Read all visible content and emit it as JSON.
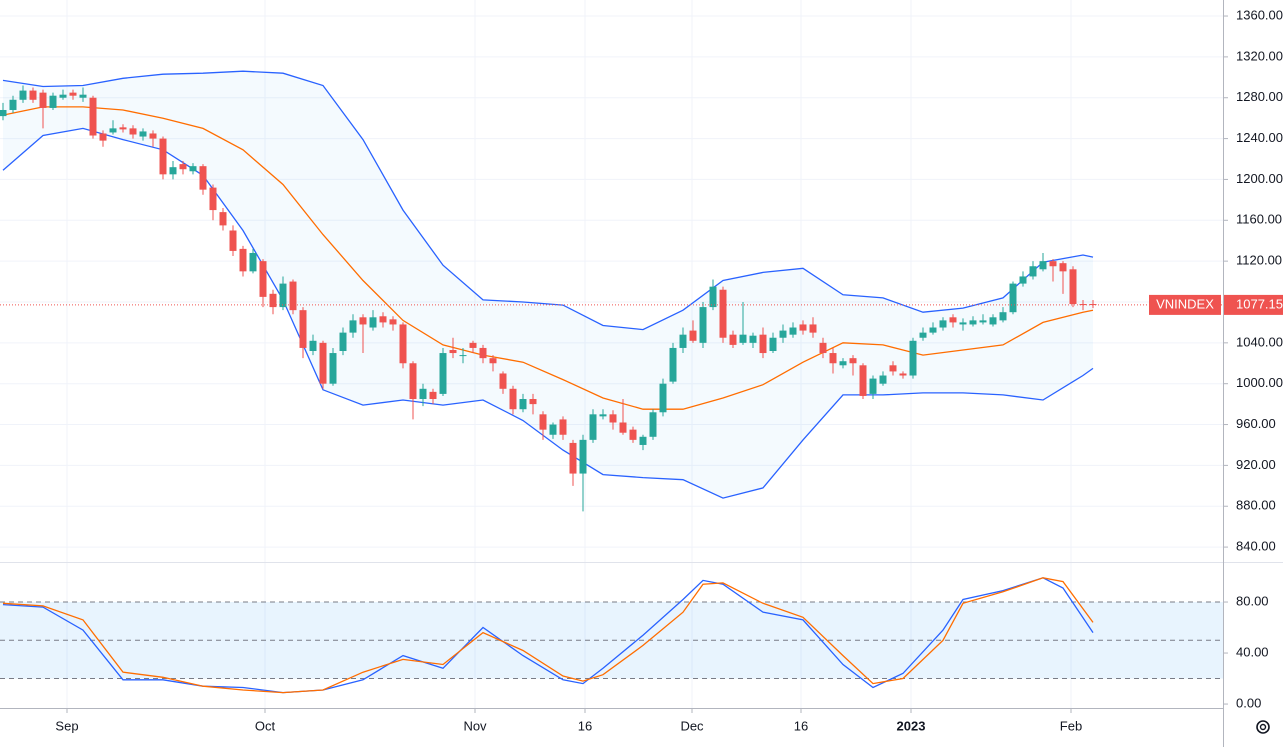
{
  "chart_data": {
    "type": "candlestick",
    "symbol": "VNINDEX",
    "last_price": {
      "value": 1077.15,
      "label": "1077.15"
    },
    "up_color": "#26a69a",
    "down_color": "#ef5350",
    "xlim": [
      -0.3,
      122.0
    ],
    "xticks": [
      {
        "value": 6.4,
        "label": "Sep"
      },
      {
        "value": 26.2,
        "label": "Oct"
      },
      {
        "value": 47.2,
        "label": "Nov"
      },
      {
        "value": 58.2,
        "label": "16"
      },
      {
        "value": 68.9,
        "label": "Dec"
      },
      {
        "value": 79.8,
        "label": "16"
      },
      {
        "value": 90.8,
        "label": "2023"
      },
      {
        "value": 106.8,
        "label": "Feb"
      }
    ],
    "ylim": [
      825.4,
      1375.7
    ],
    "yticks": [
      {
        "value": 1360,
        "label": "1360.00"
      },
      {
        "value": 1320,
        "label": "1320.00"
      },
      {
        "value": 1280,
        "label": "1280.00"
      },
      {
        "value": 1240,
        "label": "1240.00"
      },
      {
        "value": 1200,
        "label": "1200.00"
      },
      {
        "value": 1160,
        "label": "1160.00"
      },
      {
        "value": 1120,
        "label": "1120.00"
      },
      {
        "value": 1080,
        "label": "1080.00"
      },
      {
        "value": 1040,
        "label": "1040.00"
      },
      {
        "value": 1000,
        "label": "1000.00"
      },
      {
        "value": 960,
        "label": "960.00"
      },
      {
        "value": 920,
        "label": "920.00"
      },
      {
        "value": 880,
        "label": "880.00"
      },
      {
        "value": 840,
        "label": "840.00"
      }
    ],
    "grid": true,
    "ohlc": [
      [
        1262,
        1275,
        1258,
        1268
      ],
      [
        1268,
        1282,
        1265,
        1278
      ],
      [
        1278,
        1292,
        1275,
        1287
      ],
      [
        1287,
        1290,
        1275,
        1278
      ],
      [
        1285,
        1288,
        1250,
        1270
      ],
      [
        1270,
        1285,
        1268,
        1282
      ],
      [
        1280,
        1288,
        1278,
        1283
      ],
      [
        1285,
        1288,
        1278,
        1282
      ],
      [
        1280,
        1290,
        1276,
        1283
      ],
      [
        1280,
        1282,
        1240,
        1243
      ],
      [
        1245,
        1248,
        1232,
        1238
      ],
      [
        1246,
        1258,
        1244,
        1250
      ],
      [
        1251,
        1254,
        1246,
        1249
      ],
      [
        1250,
        1253,
        1240,
        1244
      ],
      [
        1242,
        1250,
        1238,
        1247
      ],
      [
        1245,
        1248,
        1232,
        1240
      ],
      [
        1240,
        1242,
        1200,
        1205
      ],
      [
        1205,
        1218,
        1200,
        1212
      ],
      [
        1215,
        1218,
        1205,
        1210
      ],
      [
        1208,
        1216,
        1205,
        1213
      ],
      [
        1213,
        1215,
        1185,
        1190
      ],
      [
        1192,
        1195,
        1160,
        1170
      ],
      [
        1168,
        1172,
        1150,
        1155
      ],
      [
        1150,
        1155,
        1125,
        1130
      ],
      [
        1132,
        1135,
        1105,
        1110
      ],
      [
        1110,
        1132,
        1108,
        1128
      ],
      [
        1120,
        1122,
        1075,
        1085
      ],
      [
        1088,
        1092,
        1068,
        1075
      ],
      [
        1075,
        1105,
        1072,
        1098
      ],
      [
        1100,
        1102,
        1068,
        1072
      ],
      [
        1072,
        1075,
        1025,
        1035
      ],
      [
        1032,
        1048,
        1028,
        1042
      ],
      [
        1040,
        1042,
        995,
        1000
      ],
      [
        1000,
        1035,
        998,
        1030
      ],
      [
        1032,
        1055,
        1028,
        1050
      ],
      [
        1050,
        1068,
        1045,
        1062
      ],
      [
        1065,
        1068,
        1030,
        1058
      ],
      [
        1055,
        1072,
        1052,
        1065
      ],
      [
        1066,
        1070,
        1055,
        1060
      ],
      [
        1063,
        1066,
        1052,
        1058
      ],
      [
        1058,
        1060,
        1015,
        1020
      ],
      [
        1020,
        1022,
        965,
        985
      ],
      [
        985,
        1000,
        978,
        995
      ],
      [
        992,
        995,
        980,
        985
      ],
      [
        990,
        1035,
        988,
        1030
      ],
      [
        1033,
        1045,
        1025,
        1030
      ],
      [
        1028,
        1035,
        1020,
        1028
      ],
      [
        1040,
        1042,
        1030,
        1035
      ],
      [
        1035,
        1038,
        1020,
        1025
      ],
      [
        1025,
        1028,
        1012,
        1020
      ],
      [
        1010,
        1012,
        990,
        995
      ],
      [
        995,
        998,
        970,
        975
      ],
      [
        975,
        990,
        972,
        985
      ],
      [
        985,
        990,
        970,
        980
      ],
      [
        970,
        973,
        945,
        955
      ],
      [
        950,
        962,
        946,
        960
      ],
      [
        965,
        968,
        945,
        950
      ],
      [
        942,
        945,
        900,
        912
      ],
      [
        912,
        950,
        875,
        945
      ],
      [
        945,
        975,
        942,
        970
      ],
      [
        968,
        975,
        965,
        970
      ],
      [
        970,
        974,
        955,
        962
      ],
      [
        962,
        985,
        950,
        952
      ],
      [
        955,
        958,
        942,
        945
      ],
      [
        940,
        950,
        935,
        948
      ],
      [
        948,
        975,
        945,
        972
      ],
      [
        972,
        1005,
        968,
        1000
      ],
      [
        1002,
        1040,
        1000,
        1035
      ],
      [
        1035,
        1055,
        1030,
        1048
      ],
      [
        1052,
        1062,
        1040,
        1042
      ],
      [
        1040,
        1080,
        1035,
        1075
      ],
      [
        1075,
        1102,
        1072,
        1095
      ],
      [
        1092,
        1095,
        1040,
        1045
      ],
      [
        1048,
        1052,
        1035,
        1038
      ],
      [
        1040,
        1080,
        1038,
        1048
      ],
      [
        1040,
        1050,
        1035,
        1047
      ],
      [
        1048,
        1055,
        1025,
        1030
      ],
      [
        1032,
        1050,
        1030,
        1045
      ],
      [
        1045,
        1058,
        1040,
        1052
      ],
      [
        1048,
        1060,
        1045,
        1055
      ],
      [
        1058,
        1062,
        1048,
        1052
      ],
      [
        1058,
        1065,
        1045,
        1050
      ],
      [
        1040,
        1045,
        1025,
        1030
      ],
      [
        1030,
        1035,
        1010,
        1020
      ],
      [
        1018,
        1025,
        1015,
        1022
      ],
      [
        1025,
        1028,
        1008,
        1020
      ],
      [
        1018,
        1020,
        985,
        988
      ],
      [
        990,
        1008,
        985,
        1005
      ],
      [
        1000,
        1012,
        998,
        1008
      ],
      [
        1018,
        1022,
        1008,
        1012
      ],
      [
        1010,
        1012,
        1005,
        1008
      ],
      [
        1008,
        1045,
        1005,
        1042
      ],
      [
        1045,
        1055,
        1042,
        1050
      ],
      [
        1050,
        1060,
        1048,
        1055
      ],
      [
        1055,
        1065,
        1052,
        1062
      ],
      [
        1065,
        1068,
        1055,
        1060
      ],
      [
        1058,
        1064,
        1052,
        1060
      ],
      [
        1058,
        1066,
        1056,
        1062
      ],
      [
        1060,
        1068,
        1058,
        1062
      ],
      [
        1058,
        1068,
        1056,
        1065
      ],
      [
        1062,
        1075,
        1060,
        1070
      ],
      [
        1070,
        1100,
        1068,
        1098
      ],
      [
        1098,
        1110,
        1095,
        1105
      ],
      [
        1105,
        1120,
        1102,
        1115
      ],
      [
        1112,
        1128,
        1110,
        1120
      ],
      [
        1120,
        1122,
        1100,
        1115
      ],
      [
        1118,
        1120,
        1088,
        1110
      ],
      [
        1112,
        1115,
        1075,
        1078
      ],
      [
        1078,
        1082,
        1072,
        1077
      ],
      [
        1078,
        1082,
        1074,
        1077.15
      ]
    ],
    "bollinger": {
      "fill": "#2196f3",
      "upper": {
        "color": "#2962ff",
        "x": [
          0,
          4,
          8,
          12,
          16,
          20,
          24,
          28,
          32,
          36,
          40,
          44,
          48,
          52,
          56,
          60,
          64,
          68,
          72,
          76,
          80,
          84,
          88,
          92,
          96,
          100,
          104,
          108,
          109
        ],
        "values": [
          1297,
          1291,
          1292,
          1299,
          1303,
          1304,
          1306,
          1304,
          1292,
          1239,
          1170,
          1116,
          1082,
          1080,
          1077,
          1057,
          1053,
          1072,
          1101,
          1109,
          1113,
          1087,
          1084,
          1070,
          1074,
          1084,
          1119,
          1126,
          1124
        ]
      },
      "middle": {
        "color": "#ff6d00",
        "x": [
          0,
          4,
          8,
          12,
          16,
          20,
          24,
          28,
          32,
          36,
          40,
          44,
          48,
          52,
          56,
          60,
          64,
          68,
          72,
          76,
          80,
          84,
          88,
          92,
          96,
          100,
          104,
          108,
          109
        ],
        "values": [
          1263,
          1271,
          1271,
          1268,
          1260,
          1250,
          1229,
          1195,
          1146,
          1101,
          1062,
          1038,
          1028,
          1021,
          1004,
          986,
          975,
          975,
          986,
          999,
          1021,
          1040,
          1038,
          1028,
          1033,
          1038,
          1060,
          1070,
          1072
        ]
      },
      "lower": {
        "color": "#2962ff",
        "x": [
          0,
          4,
          8,
          12,
          16,
          20,
          24,
          28,
          32,
          36,
          40,
          44,
          48,
          52,
          56,
          60,
          64,
          68,
          72,
          76,
          80,
          84,
          88,
          92,
          96,
          100,
          104,
          108,
          109
        ],
        "values": [
          1209,
          1243,
          1250,
          1239,
          1229,
          1204,
          1150,
          1082,
          994,
          979,
          984,
          979,
          984,
          964,
          935,
          911,
          908,
          906,
          888,
          898,
          945,
          989,
          989,
          991,
          991,
          989,
          984,
          1008,
          1015
        ]
      }
    },
    "stochastic": {
      "ylim": [
        -3.1,
        111.4
      ],
      "yticks": [
        {
          "value": 0,
          "label": "0.00"
        },
        {
          "value": 40,
          "label": "40.00"
        },
        {
          "value": 80,
          "label": "80.00"
        }
      ],
      "levels": [
        20,
        50,
        80
      ],
      "fill": "#2196f3",
      "k": {
        "color": "#2962ff",
        "x": [
          0,
          4,
          8,
          12,
          16,
          20,
          24,
          28,
          32,
          36,
          40,
          44,
          48,
          52,
          56,
          58,
          60,
          64,
          68,
          70,
          72,
          76,
          80,
          84,
          87,
          90,
          94,
          96,
          100,
          104,
          106,
          109
        ],
        "values": [
          78,
          76,
          58,
          19,
          19,
          14,
          13,
          9,
          11,
          19,
          38,
          28,
          60,
          38,
          19,
          16,
          28,
          54,
          82,
          97,
          94,
          72,
          66,
          31,
          13,
          24,
          58,
          82,
          89,
          99,
          91,
          56
        ]
      },
      "d": {
        "color": "#ff6d00",
        "x": [
          0,
          4,
          8,
          12,
          16,
          20,
          24,
          28,
          32,
          36,
          40,
          44,
          48,
          52,
          56,
          58,
          60,
          64,
          68,
          70,
          72,
          76,
          80,
          84,
          87,
          90,
          94,
          96,
          100,
          104,
          106,
          109
        ],
        "values": [
          79,
          77,
          66,
          25,
          21,
          14,
          11,
          9,
          11,
          25,
          35,
          31,
          56,
          42,
          22,
          18,
          23,
          46,
          72,
          94,
          95,
          79,
          68,
          38,
          16,
          20,
          50,
          79,
          88,
          99,
          96,
          64
        ]
      }
    }
  }
}
